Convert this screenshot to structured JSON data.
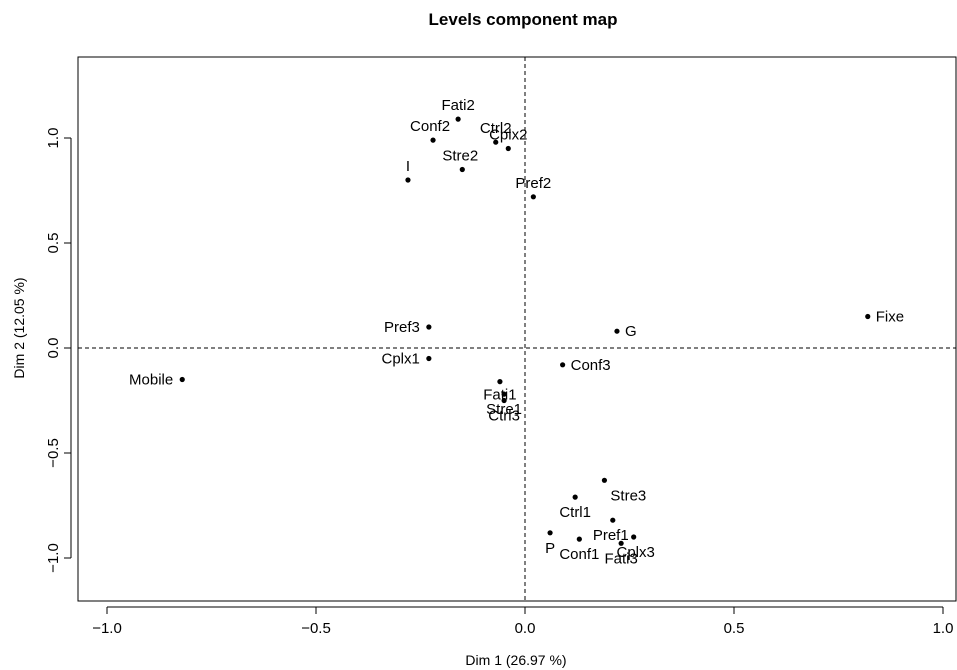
{
  "chart_data": {
    "type": "scatter",
    "title": "Levels component map",
    "xlabel": "Dim 1 (26.97 %)",
    "ylabel": "Dim 2 (12.05 %)",
    "xlim": [
      -1.0,
      1.0
    ],
    "ylim": [
      -1.2,
      1.35
    ],
    "xticks": [
      -1.0,
      -0.5,
      0.0,
      0.5,
      1.0
    ],
    "xtick_labels": [
      "−1.0",
      "−0.5",
      "0.0",
      "0.5",
      "1.0"
    ],
    "yticks": [
      -1.0,
      -0.5,
      0.0,
      0.5,
      1.0
    ],
    "ytick_labels": [
      "−1.0",
      "−0.5",
      "0.0",
      "0.5",
      "1.0"
    ],
    "reference_lines": {
      "x": 0,
      "y": 0,
      "style": "dashed"
    },
    "grid": false,
    "points": [
      {
        "label": "Fati2",
        "x": -0.16,
        "y": 1.09
      },
      {
        "label": "Conf2",
        "x": -0.22,
        "y": 0.99
      },
      {
        "label": "Ctrl2",
        "x": -0.07,
        "y": 0.98
      },
      {
        "label": "Cplx2",
        "x": -0.04,
        "y": 0.95
      },
      {
        "label": "Stre2",
        "x": -0.15,
        "y": 0.85
      },
      {
        "label": "I",
        "x": -0.28,
        "y": 0.8
      },
      {
        "label": "Pref2",
        "x": 0.02,
        "y": 0.72
      },
      {
        "label": "Fixe",
        "x": 0.82,
        "y": 0.15
      },
      {
        "label": "Pref3",
        "x": -0.23,
        "y": 0.1
      },
      {
        "label": "G",
        "x": 0.22,
        "y": 0.08
      },
      {
        "label": "Cplx1",
        "x": -0.23,
        "y": -0.05
      },
      {
        "label": "Conf3",
        "x": 0.09,
        "y": -0.08
      },
      {
        "label": "Mobile",
        "x": -0.82,
        "y": -0.15
      },
      {
        "label": "Fati1",
        "x": -0.06,
        "y": -0.16
      },
      {
        "label": "Stre1",
        "x": -0.05,
        "y": -0.22
      },
      {
        "label": "Ctrl3",
        "x": -0.05,
        "y": -0.25
      },
      {
        "label": "Stre3",
        "x": 0.19,
        "y": -0.63
      },
      {
        "label": "Ctrl1",
        "x": 0.12,
        "y": -0.71
      },
      {
        "label": "Pref1",
        "x": 0.21,
        "y": -0.82
      },
      {
        "label": "P",
        "x": 0.06,
        "y": -0.88
      },
      {
        "label": "Conf1",
        "x": 0.13,
        "y": -0.91
      },
      {
        "label": "Cplx3",
        "x": 0.26,
        "y": -0.9
      },
      {
        "label": "Fati3",
        "x": 0.23,
        "y": -0.93
      }
    ]
  }
}
